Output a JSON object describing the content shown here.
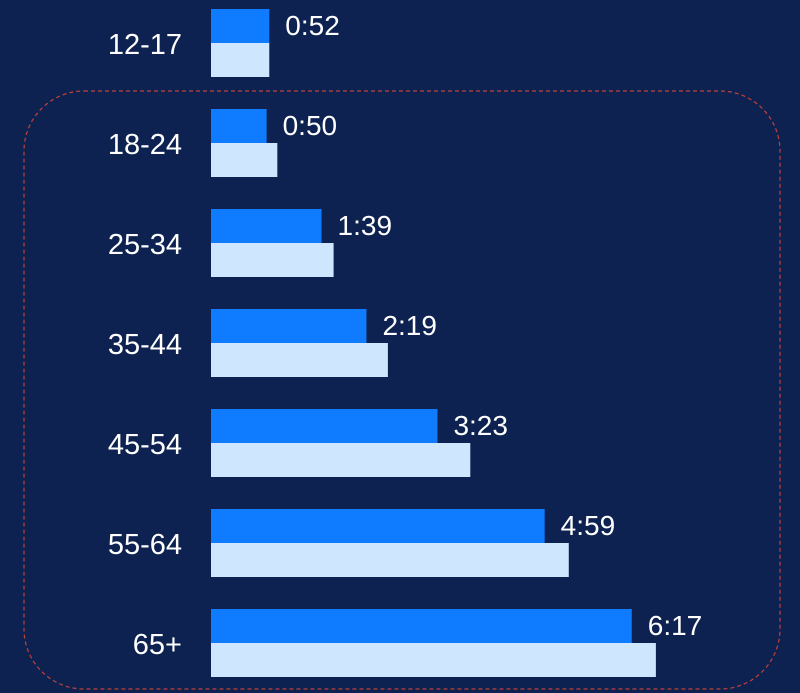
{
  "colors": {
    "background": "#0d2250",
    "series_primary": "#0f7bff",
    "series_secondary": "#cfe6ff",
    "highlight_border": "#c0413b"
  },
  "chart_data": {
    "type": "bar",
    "orientation": "horizontal",
    "categories": [
      "12-17",
      "18-24",
      "25-34",
      "35-44",
      "45-54",
      "55-64",
      "65+"
    ],
    "series": [
      {
        "values": [
          0.87,
          0.83,
          1.65,
          2.32,
          3.38,
          4.98,
          6.28
        ],
        "value_labels": [
          "0:52",
          "0:50",
          "1:39",
          "2:19",
          "3:23",
          "4:59",
          "6:17"
        ],
        "color": "#0f7bff"
      },
      {
        "values": [
          0.87,
          0.99,
          1.83,
          2.64,
          3.87,
          5.34,
          6.64
        ],
        "color": "#cfe6ff"
      }
    ],
    "highlighted_categories": [
      "18-24",
      "25-34",
      "35-44",
      "45-54",
      "55-64",
      "65+"
    ],
    "grid": false,
    "legend": "none"
  }
}
